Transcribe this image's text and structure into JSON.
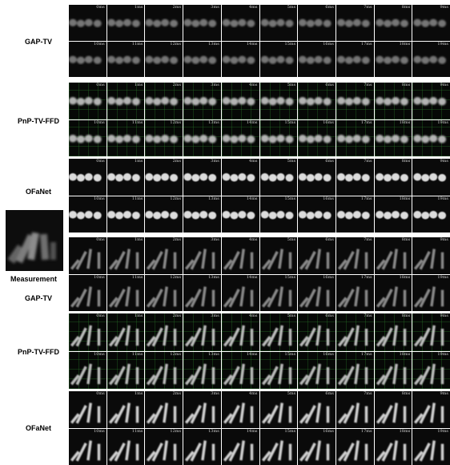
{
  "labels": {
    "gap_tv": "GAP-TV",
    "pnp_tv_ffd": "PnP-TV-FFD",
    "ofanet": "OFaNet",
    "measurement": "Measurement"
  },
  "frame_labels": [
    "0ms",
    "1ms",
    "2ms",
    "3ms",
    "4ms",
    "5ms",
    "6ms",
    "7ms",
    "8ms",
    "9ms",
    "10ms",
    "11ms",
    "12ms",
    "13ms",
    "14ms",
    "15ms",
    "16ms",
    "17ms",
    "18ms",
    "19ms"
  ]
}
